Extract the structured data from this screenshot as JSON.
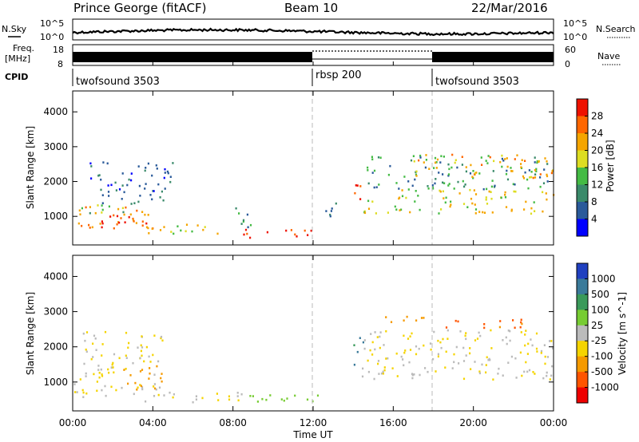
{
  "header": {
    "radar": "Prince George (fitACF)",
    "beam": "Beam 10",
    "date": "22/Mar/2016"
  },
  "noise_panel": {
    "left_label": "N.Sky",
    "right_label": "N.Search",
    "tick_top": "10^5",
    "tick_bottom": "10^0"
  },
  "freq_panel": {
    "left_label_top": "Freq.",
    "left_label_bottom": "[MHz]",
    "left_ticks": [
      "18",
      "8"
    ],
    "right_ticks": [
      "60",
      "0"
    ],
    "right_label": "Nave"
  },
  "cpid_panel": {
    "label": "CPID",
    "segments": [
      {
        "name": "twofsound 3503",
        "start_hour": 0
      },
      {
        "name": "rbsp 200",
        "start_hour": 12
      },
      {
        "name": "twofsound 3503",
        "start_hour": 18
      }
    ]
  },
  "chart_data": [
    {
      "type": "heatmap",
      "name": "power",
      "ylabel": "Slant Range [km]",
      "colorbar_label": "Power [dB]",
      "ylim": [
        180,
        4600
      ],
      "xlim_hours": [
        0,
        24
      ],
      "yticks": [
        1000,
        2000,
        3000,
        4000
      ],
      "colorbar_ticks": [
        "28",
        "24",
        "20",
        "16",
        "12",
        "8",
        "4"
      ],
      "colorbar_colors": [
        "#ee1100",
        "#ff6600",
        "#f5a500",
        "#dddd22",
        "#44bb44",
        "#3a8a6a",
        "#2a5a9a",
        "#0000ff"
      ],
      "regions": [
        {
          "t0": 0.2,
          "t1": 4.3,
          "r0": 650,
          "r1": 1300,
          "level": 22
        },
        {
          "t0": 1.2,
          "t1": 4.0,
          "r0": 700,
          "r1": 1050,
          "level": 28
        },
        {
          "t0": 0.0,
          "t1": 3.0,
          "r0": 1100,
          "r1": 1400,
          "level": 14
        },
        {
          "t0": 0.8,
          "t1": 5.0,
          "r0": 1400,
          "r1": 2600,
          "level": 8
        },
        {
          "t0": 3.5,
          "t1": 7.5,
          "r0": 450,
          "r1": 800,
          "level": 18
        },
        {
          "t0": 8.5,
          "t1": 12.5,
          "r0": 380,
          "r1": 650,
          "level": 28
        },
        {
          "t0": 8.0,
          "t1": 9.0,
          "r0": 700,
          "r1": 1400,
          "level": 12
        },
        {
          "t0": 14.0,
          "t1": 14.6,
          "r0": 1500,
          "r1": 2200,
          "level": 26
        },
        {
          "t0": 14.4,
          "t1": 24.0,
          "r0": 1100,
          "r1": 1800,
          "level": 18
        },
        {
          "t0": 14.6,
          "t1": 24.0,
          "r0": 1800,
          "r1": 2800,
          "level": 12
        },
        {
          "t0": 17.0,
          "t1": 24.0,
          "r0": 2100,
          "r1": 2800,
          "level": 20
        },
        {
          "t0": 12.2,
          "t1": 13.2,
          "r0": 900,
          "r1": 1400,
          "level": 8
        }
      ]
    },
    {
      "type": "heatmap",
      "name": "velocity",
      "ylabel": "Slant Range [km]",
      "colorbar_label": "Velocity [m s^-1]",
      "ylim": [
        180,
        4600
      ],
      "xlim_hours": [
        0,
        24
      ],
      "yticks": [
        1000,
        2000,
        3000,
        4000
      ],
      "colorbar_ticks": [
        "1000",
        "500",
        "100",
        "25",
        "-25",
        "-100",
        "-500",
        "-1000"
      ],
      "colorbar_colors": [
        "#2040c0",
        "#3a7a9a",
        "#3a9a5a",
        "#77cc33",
        "#bbbbbb",
        "#f5d400",
        "#f59a00",
        "#ff5500",
        "#ee0000"
      ],
      "regions": [
        {
          "t0": 0.0,
          "t1": 4.5,
          "r0": 600,
          "r1": 1400,
          "level": -25
        },
        {
          "t0": 2.5,
          "t1": 4.5,
          "r0": 800,
          "r1": 1500,
          "level": -300
        },
        {
          "t0": 0.5,
          "t1": 4.5,
          "r0": 1400,
          "r1": 2500,
          "level": -25
        },
        {
          "t0": 3.5,
          "t1": 8.5,
          "r0": 450,
          "r1": 750,
          "level": -25
        },
        {
          "t0": 8.5,
          "t1": 12.5,
          "r0": 400,
          "r1": 700,
          "level": 60
        },
        {
          "t0": 14.0,
          "t1": 14.6,
          "r0": 1500,
          "r1": 2300,
          "level": 300
        },
        {
          "t0": 14.4,
          "t1": 24.0,
          "r0": 1100,
          "r1": 2500,
          "level": -25
        },
        {
          "t0": 18.0,
          "t1": 22.5,
          "r0": 2550,
          "r1": 2800,
          "level": -600
        },
        {
          "t0": 15.0,
          "t1": 18.0,
          "r0": 2700,
          "r1": 2900,
          "level": -200
        }
      ]
    }
  ],
  "x_axis": {
    "label": "Time UT",
    "ticks": [
      "00:00",
      "04:00",
      "08:00",
      "12:00",
      "16:00",
      "20:00",
      "00:00"
    ],
    "tick_hours": [
      0,
      4,
      8,
      12,
      16,
      20,
      24
    ]
  }
}
